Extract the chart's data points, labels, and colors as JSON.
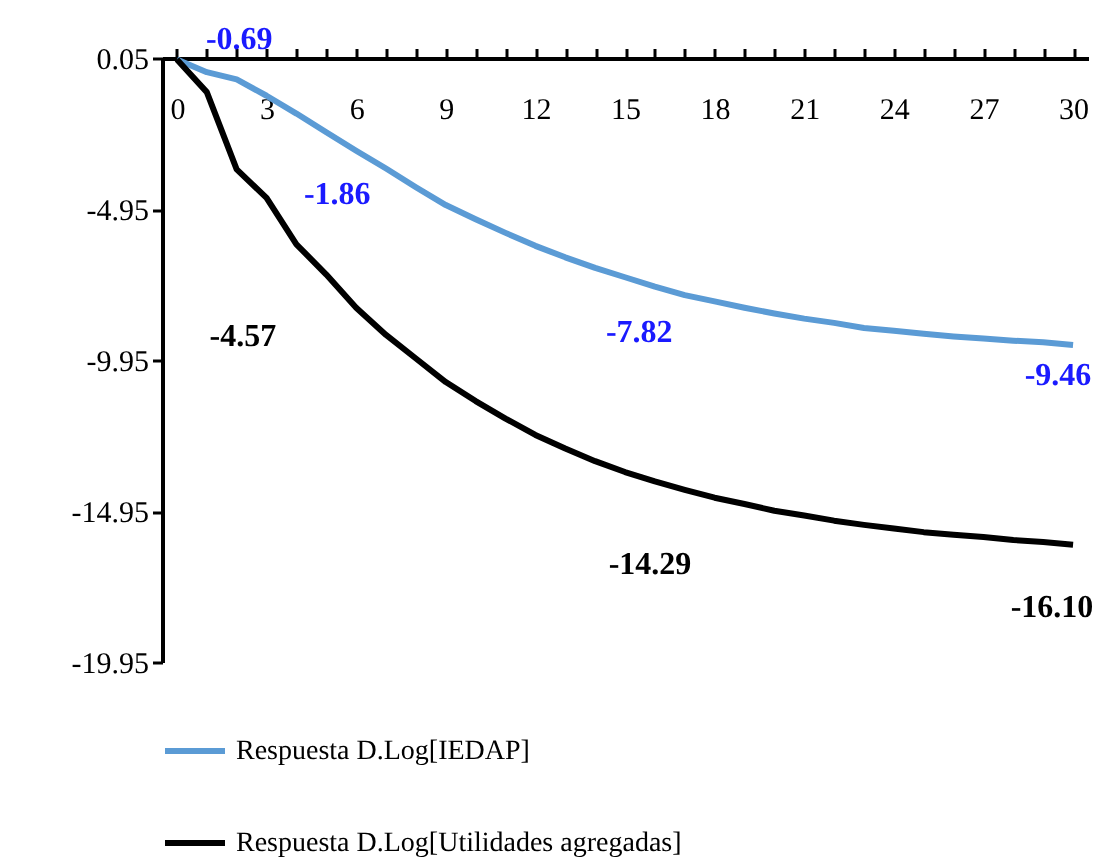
{
  "chart_data": {
    "type": "line",
    "x": [
      0,
      1,
      2,
      3,
      4,
      5,
      6,
      7,
      8,
      9,
      10,
      11,
      12,
      13,
      14,
      15,
      16,
      17,
      18,
      19,
      20,
      21,
      22,
      23,
      24,
      25,
      26,
      27,
      28,
      29,
      30
    ],
    "series": [
      {
        "name": "Respuesta D.Log[IEDAP]",
        "color": "#5b9bd5",
        "values": [
          0,
          -0.42,
          -0.66,
          -1.2,
          -1.79,
          -2.41,
          -3.02,
          -3.61,
          -4.23,
          -4.82,
          -5.29,
          -5.74,
          -6.17,
          -6.55,
          -6.9,
          -7.21,
          -7.52,
          -7.8,
          -8.01,
          -8.22,
          -8.41,
          -8.58,
          -8.72,
          -8.89,
          -8.98,
          -9.08,
          -9.17,
          -9.24,
          -9.31,
          -9.36,
          -9.45
        ]
      },
      {
        "name": "Respuesta D.Log[Utilidades agregadas]",
        "color": "#000000",
        "values": [
          0,
          -1.08,
          -3.64,
          -4.58,
          -6.12,
          -7.12,
          -8.22,
          -9.12,
          -9.9,
          -10.68,
          -11.31,
          -11.89,
          -12.43,
          -12.88,
          -13.3,
          -13.66,
          -13.97,
          -14.25,
          -14.51,
          -14.72,
          -14.94,
          -15.1,
          -15.27,
          -15.41,
          -15.53,
          -15.65,
          -15.74,
          -15.81,
          -15.91,
          -15.98,
          -16.07
        ]
      }
    ],
    "xlim": [
      -0.5,
      30.5
    ],
    "xticks": [
      0,
      {
        "value": 1,
        "label": null
      },
      {
        "value": 2,
        "label": null
      },
      3,
      {
        "value": 4,
        "label": null
      },
      {
        "value": 5,
        "label": null
      },
      6,
      {
        "value": 7,
        "label": null
      },
      {
        "value": 8,
        "label": null
      },
      9,
      {
        "value": 10,
        "label": null
      },
      {
        "value": 11,
        "label": null
      },
      12,
      {
        "value": 13,
        "label": null
      },
      {
        "value": 14,
        "label": null
      },
      15,
      {
        "value": 16,
        "label": null
      },
      {
        "value": 17,
        "label": null
      },
      18,
      {
        "value": 19,
        "label": null
      },
      {
        "value": 20,
        "label": null
      },
      21,
      {
        "value": 22,
        "label": null
      },
      {
        "value": 23,
        "label": null
      },
      24,
      {
        "value": 25,
        "label": null
      },
      {
        "value": 26,
        "label": null
      },
      27,
      {
        "value": 28,
        "label": null
      },
      {
        "value": 29,
        "label": null
      },
      30
    ],
    "ylim": [
      -19.95,
      0.05
    ],
    "yticks": [
      0.05,
      -4.95,
      -9.95,
      -14.95,
      -19.95
    ],
    "annotations": [
      "-0.69",
      "-1.86",
      "-4.57",
      "-7.82",
      "-9.46",
      "-14.29",
      "-16.10"
    ],
    "grid": false,
    "legend": "bottom",
    "line_style": "solid",
    "marker": "none"
  }
}
